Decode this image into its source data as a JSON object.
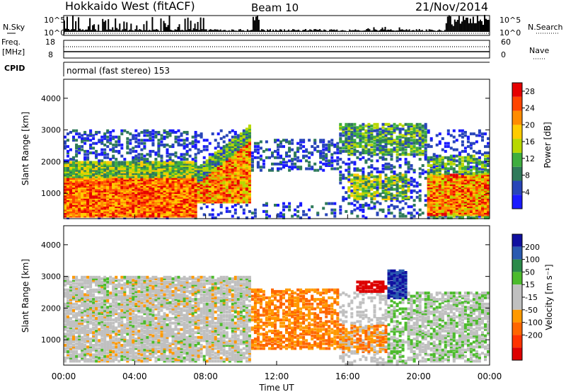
{
  "header": {
    "radar": "Hokkaido West (fitACF)",
    "beam": "Beam 10",
    "date": "21/Nov/2014"
  },
  "noise_panel": {
    "left_label": "N.Sky",
    "right_label": "N.Search",
    "left_ticks": [
      "10^5",
      "10^0"
    ],
    "right_ticks": [
      "10^5",
      "10^0"
    ]
  },
  "freq_panel": {
    "left_label_1": "Freq.",
    "left_label_2": "[MHz]",
    "left_ticks": [
      "18",
      "8"
    ],
    "right_label": "Nave",
    "right_ticks": [
      "60",
      "0"
    ]
  },
  "cpid": {
    "label": "CPID",
    "text": "normal (fast stereo) 153"
  },
  "colors": {
    "power_scale": [
      "#1a1aff",
      "#2845b8",
      "#2f7a5a",
      "#3fae3f",
      "#b8d800",
      "#ffcc00",
      "#ff8c00",
      "#ff4500",
      "#e60000"
    ],
    "velocity_scale": [
      "#1010a0",
      "#2a5ab0",
      "#2c8a4a",
      "#4cbb2c",
      "#c0c0c0",
      "#c0c0c0",
      "#ff9900",
      "#ff6600",
      "#ff3300",
      "#dd0000"
    ]
  },
  "chart_data": [
    {
      "type": "heatmap",
      "name": "power",
      "ylabel": "Slant Range [km]",
      "yticks": [
        "1000",
        "2000",
        "3000",
        "4000"
      ],
      "ylim": [
        200,
        4600
      ],
      "xlim": [
        0,
        24
      ],
      "colorbar_label": "Power [dB]",
      "colorbar_ticks": [
        "4",
        "8",
        "12",
        "16",
        "20",
        "24",
        "28"
      ],
      "colorbar_range": [
        0,
        30
      ]
    },
    {
      "type": "heatmap",
      "name": "velocity",
      "ylabel": "Slant Range [km]",
      "yticks": [
        "1000",
        "2000",
        "3000",
        "4000"
      ],
      "ylim": [
        200,
        4600
      ],
      "xlim": [
        0,
        24
      ],
      "xticks": [
        "00:00",
        "04:00",
        "08:00",
        "12:00",
        "16:00",
        "20:00",
        "00:00"
      ],
      "xlabel": "Time UT",
      "colorbar_label": "Velocity [m s⁻¹]",
      "colorbar_ticks": [
        "200",
        "100",
        "50",
        "15",
        "-15",
        "-50",
        "-100",
        "-200"
      ]
    }
  ]
}
